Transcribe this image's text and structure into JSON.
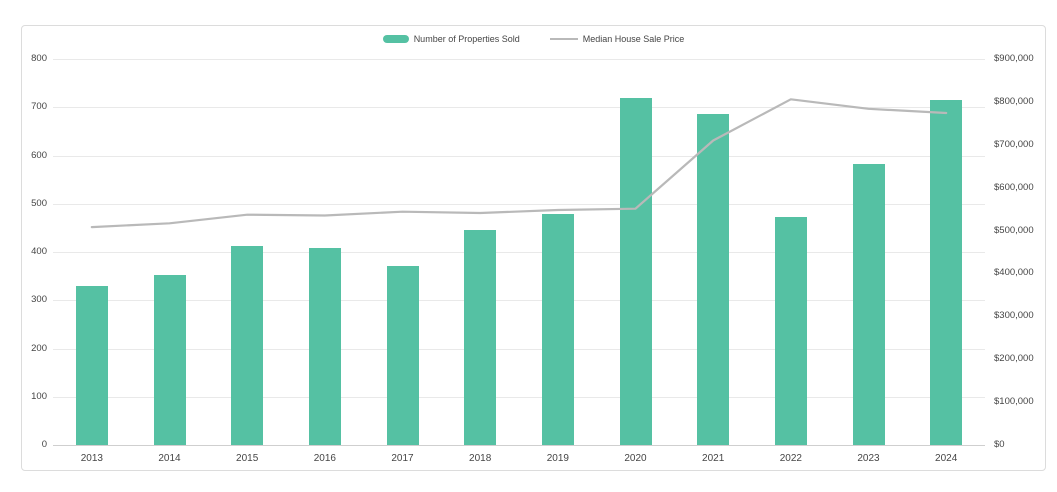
{
  "chart_data": {
    "type": "bar",
    "subtype": "combo-bar-line",
    "title": "",
    "categories": [
      "2013",
      "2014",
      "2015",
      "2016",
      "2017",
      "2018",
      "2019",
      "2020",
      "2021",
      "2022",
      "2023",
      "2024"
    ],
    "series": [
      {
        "name": "Number of Properties Sold",
        "type": "bar",
        "axis": "left",
        "color": "#55c1a3",
        "values": [
          329,
          352,
          412,
          409,
          370,
          446,
          478,
          720,
          686,
          473,
          583,
          715
        ]
      },
      {
        "name": "Median House Sale Price",
        "type": "line",
        "axis": "right",
        "color": "#b9b9b9",
        "values": [
          508000,
          517000,
          537000,
          535000,
          544000,
          541000,
          548000,
          551000,
          710000,
          806000,
          784000,
          774000
        ]
      }
    ],
    "left_axis": {
      "min": 0,
      "max": 800,
      "ticks": [
        {
          "label": "0",
          "value": 0
        },
        {
          "label": "100",
          "value": 100
        },
        {
          "label": "200",
          "value": 200
        },
        {
          "label": "300",
          "value": 300
        },
        {
          "label": "400",
          "value": 400
        },
        {
          "label": "500",
          "value": 500
        },
        {
          "label": "600",
          "value": 600
        },
        {
          "label": "700",
          "value": 700
        },
        {
          "label": "800",
          "value": 800
        }
      ]
    },
    "right_axis": {
      "min": 0,
      "max": 900000,
      "ticks": [
        {
          "label": "$0",
          "value": 0
        },
        {
          "label": "$100,000",
          "value": 100000
        },
        {
          "label": "$200,000",
          "value": 200000
        },
        {
          "label": "$300,000",
          "value": 300000
        },
        {
          "label": "$400,000",
          "value": 400000
        },
        {
          "label": "$500,000",
          "value": 500000
        },
        {
          "label": "$600,000",
          "value": 600000
        },
        {
          "label": "$700,000",
          "value": 700000
        },
        {
          "label": "$800,000",
          "value": 800000
        },
        {
          "label": "$900,000",
          "value": 900000
        }
      ]
    },
    "legend_position": "top-center",
    "grid": true
  },
  "colors": {
    "bar": "#55c1a3",
    "line": "#b9b9b9",
    "grid": "#e9e9e9",
    "zero_line": "#cfcfcf",
    "frame_border": "#dcdcdc",
    "text": "#454545",
    "background": "#ffffff"
  }
}
